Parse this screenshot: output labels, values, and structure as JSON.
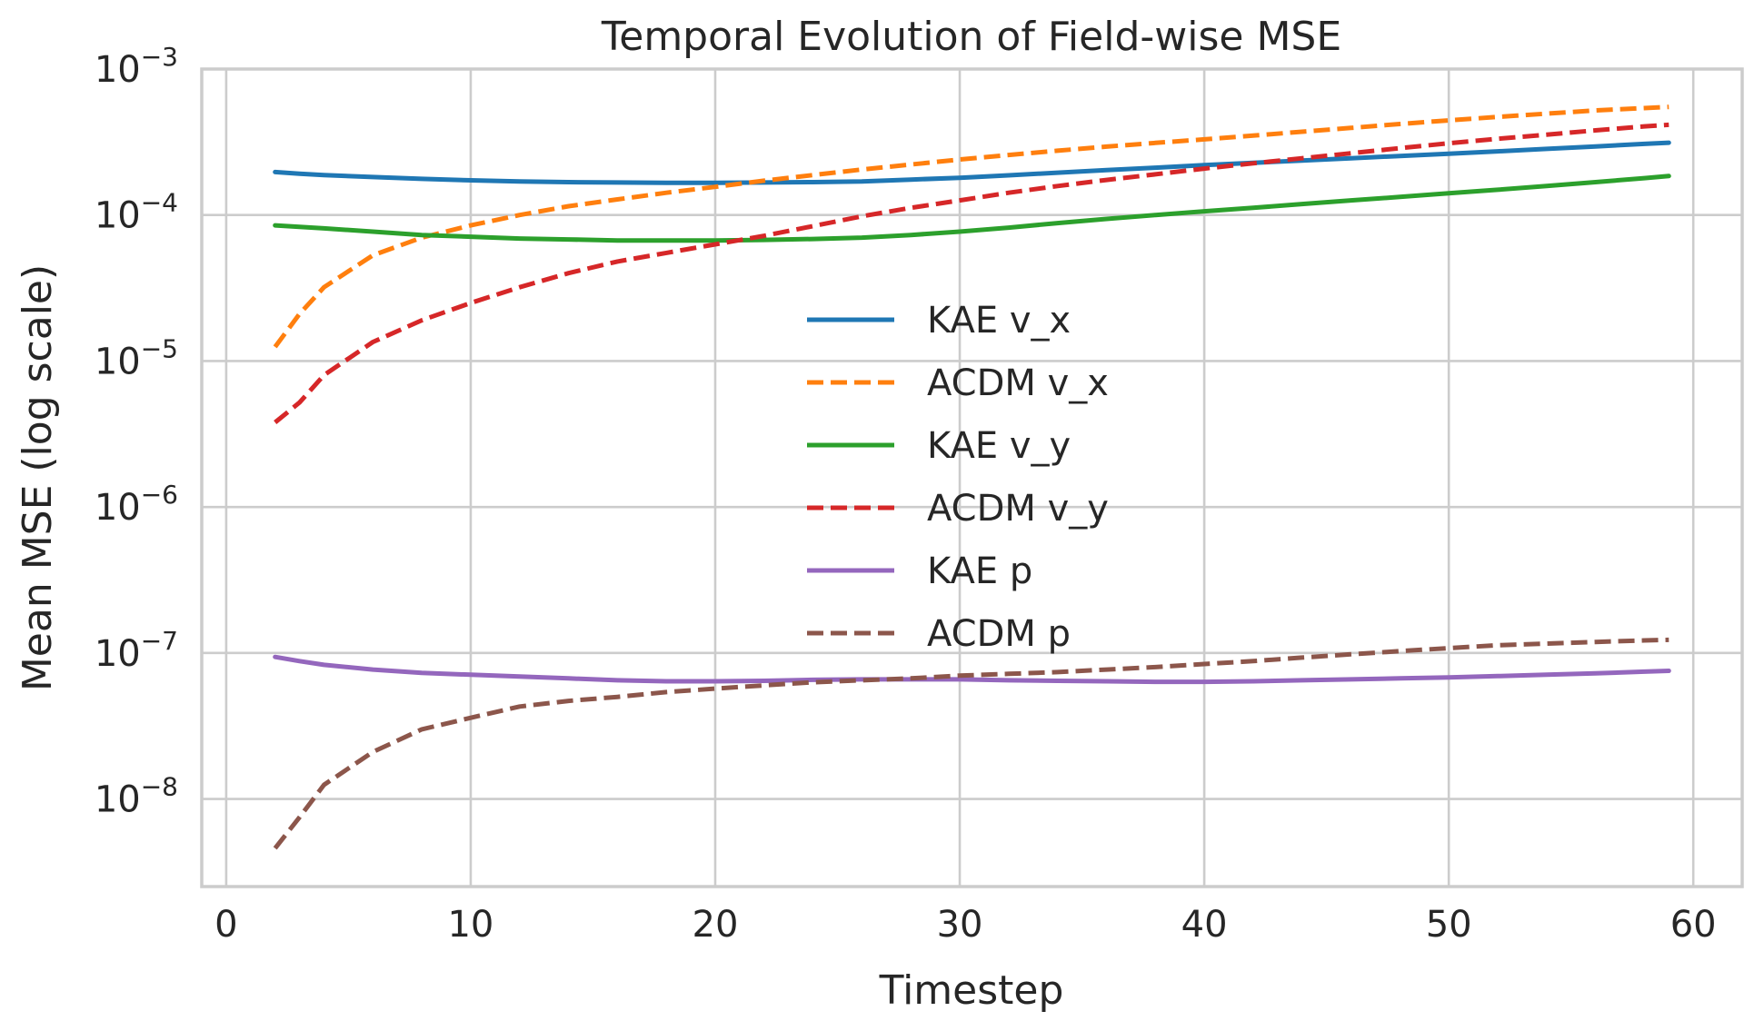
{
  "chart_data": {
    "type": "line",
    "title": "Temporal Evolution of Field-wise MSE",
    "xlabel": "Timestep",
    "ylabel": "Mean MSE (log scale)",
    "xlim": [
      -1,
      62
    ],
    "ylim_log10": [
      -8.6,
      -3
    ],
    "yscale": "log",
    "x_ticks": [
      0,
      10,
      20,
      30,
      40,
      50,
      60
    ],
    "x_tick_labels": [
      "0",
      "10",
      "20",
      "30",
      "40",
      "50",
      "60"
    ],
    "y_ticks_log10": [
      -8,
      -7,
      -6,
      -5,
      -4,
      -3
    ],
    "y_tick_labels": [
      {
        "base": "10",
        "exp": "−8"
      },
      {
        "base": "10",
        "exp": "−7"
      },
      {
        "base": "10",
        "exp": "−6"
      },
      {
        "base": "10",
        "exp": "−5"
      },
      {
        "base": "10",
        "exp": "−4"
      },
      {
        "base": "10",
        "exp": "−3"
      }
    ],
    "grid": true,
    "legend_position": "center",
    "x": [
      2,
      3,
      4,
      6,
      8,
      10,
      12,
      14,
      16,
      18,
      20,
      22,
      24,
      26,
      28,
      30,
      32,
      34,
      36,
      38,
      40,
      42,
      44,
      46,
      48,
      50,
      52,
      54,
      56,
      58,
      59
    ],
    "series": [
      {
        "name": "KAE v_x",
        "color": "#1f77b4",
        "dash": "solid",
        "values": [
          0.000197,
          0.000192,
          0.000188,
          0.000182,
          0.000177,
          0.000173,
          0.00017,
          0.000168,
          0.000167,
          0.000166,
          0.000166,
          0.000167,
          0.000168,
          0.00017,
          0.000175,
          0.00018,
          0.000187,
          0.000195,
          0.000203,
          0.000211,
          0.00022,
          0.000228,
          0.000236,
          0.000245,
          0.000254,
          0.000263,
          0.000273,
          0.000284,
          0.000295,
          0.000307,
          0.000313
        ]
      },
      {
        "name": "ACDM v_x",
        "color": "#ff7f0e",
        "dash": "dashed",
        "values": [
          1.25e-05,
          2.1e-05,
          3.2e-05,
          5.3e-05,
          7e-05,
          8.5e-05,
          0.0001,
          0.000115,
          0.000128,
          0.000142,
          0.000156,
          0.000172,
          0.000188,
          0.000205,
          0.000222,
          0.00024,
          0.000258,
          0.000276,
          0.000294,
          0.000312,
          0.00033,
          0.00035,
          0.000372,
          0.000395,
          0.00042,
          0.000445,
          0.00047,
          0.000495,
          0.00052,
          0.00054,
          0.00055
        ]
      },
      {
        "name": "KAE v_y",
        "color": "#2ca02c",
        "dash": "solid",
        "values": [
          8.5e-05,
          8.3e-05,
          8.1e-05,
          7.7e-05,
          7.3e-05,
          7.1e-05,
          6.9e-05,
          6.8e-05,
          6.7e-05,
          6.7e-05,
          6.7e-05,
          6.75e-05,
          6.85e-05,
          7e-05,
          7.3e-05,
          7.7e-05,
          8.2e-05,
          8.8e-05,
          9.4e-05,
          0.0001,
          0.000106,
          0.000112,
          0.000119,
          0.000126,
          0.000133,
          0.000141,
          0.000149,
          0.000158,
          0.000168,
          0.000179,
          0.000185
        ]
      },
      {
        "name": "ACDM v_y",
        "color": "#d62728",
        "dash": "dashed",
        "values": [
          3.8e-06,
          5.2e-06,
          8e-06,
          1.35e-05,
          1.9e-05,
          2.5e-05,
          3.2e-05,
          4e-05,
          4.8e-05,
          5.5e-05,
          6.3e-05,
          7.2e-05,
          8.4e-05,
          9.8e-05,
          0.000112,
          0.000126,
          0.000142,
          0.000158,
          0.000174,
          0.00019,
          0.000208,
          0.000226,
          0.000245,
          0.000265,
          0.000287,
          0.00031,
          0.000333,
          0.000355,
          0.00038,
          0.000405,
          0.000415
        ]
      },
      {
        "name": "KAE p",
        "color": "#9467bd",
        "dash": "solid",
        "values": [
          9.4e-08,
          8.8e-08,
          8.3e-08,
          7.7e-08,
          7.3e-08,
          7.1e-08,
          6.9e-08,
          6.7e-08,
          6.5e-08,
          6.4e-08,
          6.4e-08,
          6.45e-08,
          6.55e-08,
          6.6e-08,
          6.6e-08,
          6.6e-08,
          6.5e-08,
          6.45e-08,
          6.4e-08,
          6.35e-08,
          6.35e-08,
          6.4e-08,
          6.5e-08,
          6.6e-08,
          6.7e-08,
          6.8e-08,
          6.95e-08,
          7.1e-08,
          7.25e-08,
          7.45e-08,
          7.55e-08
        ]
      },
      {
        "name": "ACDM p",
        "color": "#8c564b",
        "dash": "dashed",
        "values": [
          4.6e-09,
          7.5e-09,
          1.25e-08,
          2.1e-08,
          3e-08,
          3.6e-08,
          4.3e-08,
          4.7e-08,
          5e-08,
          5.4e-08,
          5.7e-08,
          6e-08,
          6.3e-08,
          6.5e-08,
          6.7e-08,
          7e-08,
          7.2e-08,
          7.4e-08,
          7.7e-08,
          8e-08,
          8.4e-08,
          8.8e-08,
          9.3e-08,
          9.8e-08,
          1.03e-07,
          1.08e-07,
          1.13e-07,
          1.16e-07,
          1.19e-07,
          1.22e-07,
          1.23e-07
        ]
      }
    ]
  }
}
